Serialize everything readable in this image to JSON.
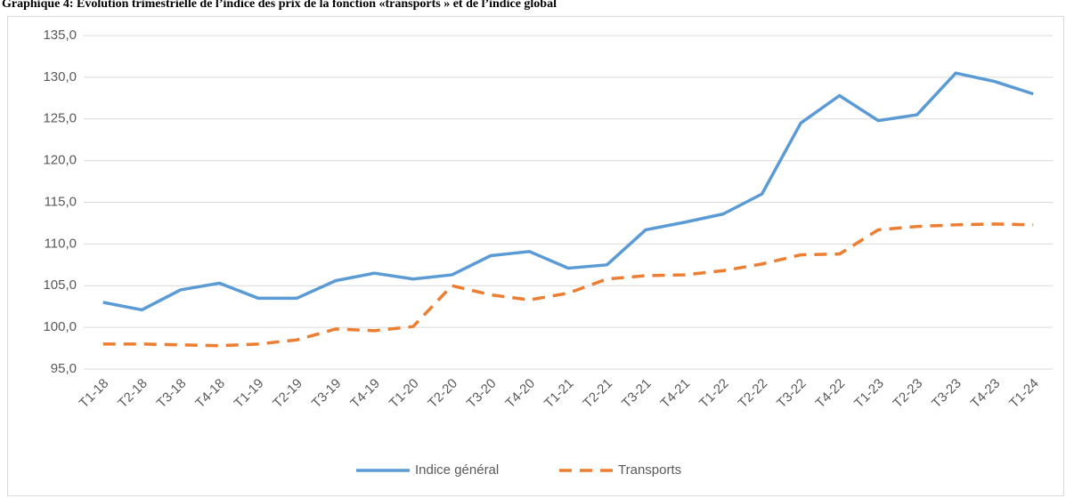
{
  "chart_data": {
    "type": "line",
    "title": "Graphique  4: Evolution trimestrielle  de l’indice des prix de la fonction «transports » et de l’indice global",
    "categories": [
      "T1-18",
      "T2-18",
      "T3-18",
      "T4-18",
      "T1-19",
      "T2-19",
      "T3-19",
      "T4-19",
      "T1-20",
      "T2-20",
      "T3-20",
      "T4-20",
      "T1-21",
      "T2-21",
      "T3-21",
      "T4-21",
      "T1-22",
      "T2-22",
      "T3-22",
      "T4-22",
      "T1-23",
      "T2-23",
      "T3-23",
      "T4-23",
      "T1-24"
    ],
    "series": [
      {
        "name": "Indice général",
        "color": "#5b9bd5",
        "line_style": "solid",
        "values": [
          103.0,
          102.1,
          104.5,
          105.3,
          103.5,
          103.5,
          105.6,
          106.5,
          105.8,
          106.3,
          108.6,
          109.1,
          107.1,
          107.5,
          111.7,
          112.6,
          113.6,
          116.0,
          124.5,
          127.8,
          124.8,
          125.5,
          130.5,
          129.5,
          128.0
        ]
      },
      {
        "name": "Transports",
        "color": "#ed7d31",
        "line_style": "dashed",
        "values": [
          98.0,
          98.0,
          97.9,
          97.8,
          98.0,
          98.5,
          99.8,
          99.6,
          100.1,
          105.0,
          103.9,
          103.3,
          104.1,
          105.8,
          106.2,
          106.3,
          106.8,
          107.6,
          108.7,
          108.8,
          111.7,
          112.1,
          112.3,
          112.4,
          112.3
        ]
      }
    ],
    "ylim": [
      95,
      135
    ],
    "yticks": [
      {
        "value": 95,
        "label": "95,0"
      },
      {
        "value": 100,
        "label": "100,0"
      },
      {
        "value": 105,
        "label": "105,0"
      },
      {
        "value": 110,
        "label": "110,0"
      },
      {
        "value": 115,
        "label": "115,0"
      },
      {
        "value": 120,
        "label": "120,0"
      },
      {
        "value": 125,
        "label": "125,0"
      },
      {
        "value": 130,
        "label": "130,0"
      },
      {
        "value": 135,
        "label": "135,0"
      }
    ],
    "grid": true,
    "legend": "bottom"
  }
}
